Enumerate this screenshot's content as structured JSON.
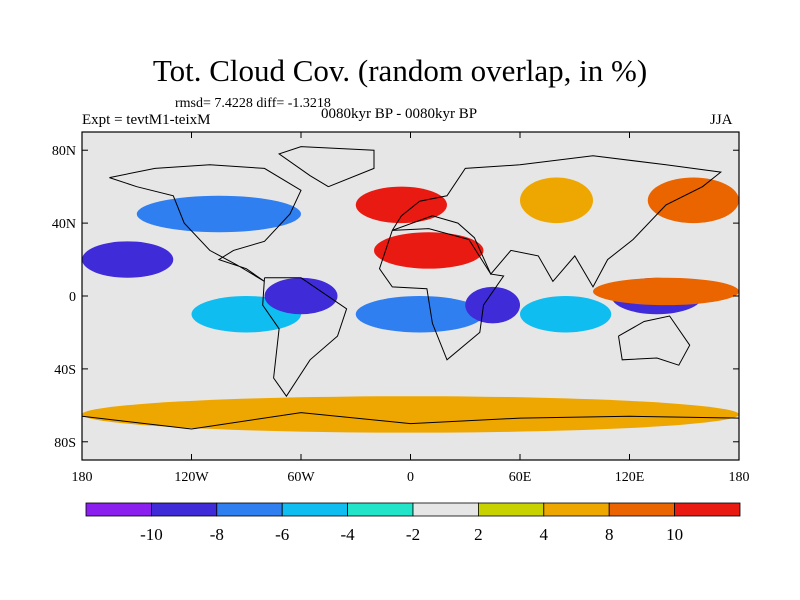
{
  "chart_data": {
    "type": "heatmap",
    "title": "Tot. Cloud Cov. (random overlap, in %)",
    "stats_text": "rmsd= 7.4228 diff= -1.3218",
    "experiment_text": "Expt = tevtM1-teixM",
    "period_text": "0080kyr BP - 0080kyr BP",
    "season_text": "JJA",
    "x_ticks": [
      "180",
      "120W",
      "60W",
      "0",
      "60E",
      "120E",
      "180"
    ],
    "y_ticks": [
      "80N",
      "40N",
      "0",
      "40S",
      "80S"
    ],
    "xlim": [
      -180,
      180
    ],
    "ylim": [
      -90,
      90
    ],
    "colorbar": {
      "levels": [
        "-10",
        "-8",
        "-6",
        "-4",
        "-2",
        "2",
        "4",
        "8",
        "10"
      ],
      "colors": [
        "#8a1ff0",
        "#3f2bd8",
        "#2f7ff0",
        "#10bdf0",
        "#22e4c8",
        "#e6e6e6",
        "#c8d200",
        "#eea600",
        "#ea6400",
        "#e81a12"
      ]
    },
    "anomaly_regions": [
      {
        "lon": [
          -180,
          -130
        ],
        "lat": [
          10,
          30
        ],
        "value": -9
      },
      {
        "lon": [
          -150,
          -60
        ],
        "lat": [
          35,
          55
        ],
        "value": -7
      },
      {
        "lon": [
          -120,
          -60
        ],
        "lat": [
          -20,
          0
        ],
        "value": -6
      },
      {
        "lon": [
          -80,
          -40
        ],
        "lat": [
          -10,
          10
        ],
        "value": -10
      },
      {
        "lon": [
          -30,
          40
        ],
        "lat": [
          -20,
          0
        ],
        "value": -7
      },
      {
        "lon": [
          30,
          60
        ],
        "lat": [
          -15,
          5
        ],
        "value": -10
      },
      {
        "lon": [
          60,
          110
        ],
        "lat": [
          -20,
          0
        ],
        "value": -6
      },
      {
        "lon": [
          110,
          160
        ],
        "lat": [
          -10,
          10
        ],
        "value": -10
      },
      {
        "lon": [
          -20,
          40
        ],
        "lat": [
          15,
          35
        ],
        "value": 11
      },
      {
        "lon": [
          -30,
          20
        ],
        "lat": [
          40,
          60
        ],
        "value": 10
      },
      {
        "lon": [
          60,
          100
        ],
        "lat": [
          40,
          65
        ],
        "value": 6
      },
      {
        "lon": [
          100,
          180
        ],
        "lat": [
          -5,
          10
        ],
        "value": 9
      },
      {
        "lon": [
          130,
          180
        ],
        "lat": [
          40,
          65
        ],
        "value": 8
      },
      {
        "lon": [
          -180,
          180
        ],
        "lat": [
          -75,
          -55
        ],
        "value": 4
      }
    ]
  }
}
